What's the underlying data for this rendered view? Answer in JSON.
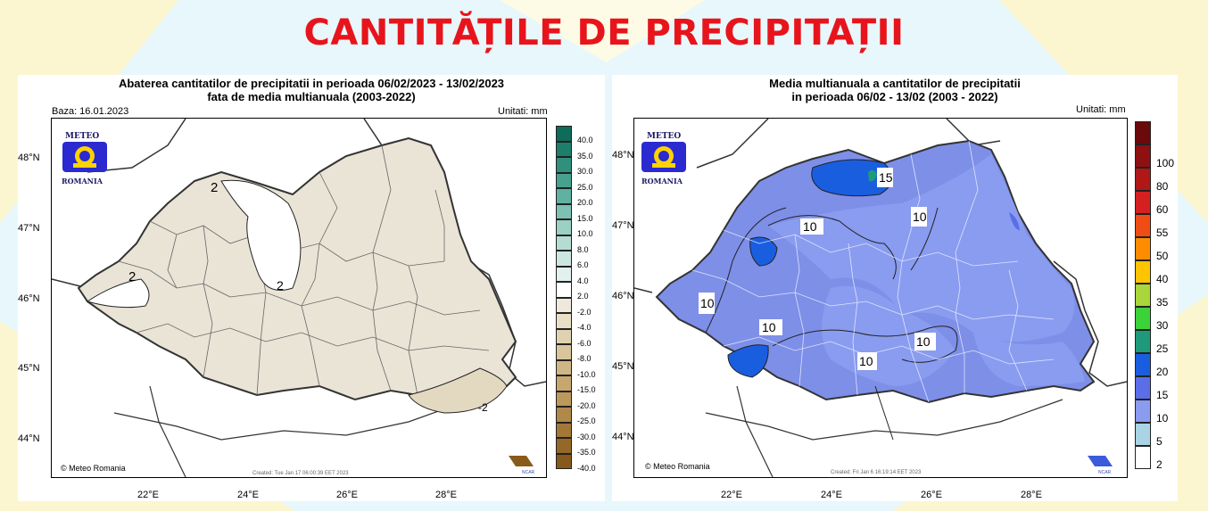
{
  "page": {
    "title": "CANTITĂȚILE DE PRECIPITAȚII"
  },
  "colors": {
    "title": "#e8141c",
    "romania_fill_left": "#e9e4d6",
    "romania_fill_right": "#7e8fe8"
  },
  "left_map": {
    "title_line1": "Abaterea cantitatilor de precipitatii in perioada 06/02/2023 - 13/02/2023",
    "title_line2": "fata de media multianuala (2003-2022)",
    "base_date": "Baza: 16.01.2023",
    "units": "Unitati: mm",
    "created": "Created: Tue Jan 17 06:00:39 EET 2023",
    "copyright": "© Meteo Romania",
    "logo_top": "METEO",
    "logo_bottom": "ROMANIA",
    "ncar": "NCAR",
    "latitudes": [
      "48°N",
      "47°N",
      "46°N",
      "45°N",
      "44°N"
    ],
    "longitudes": [
      "22°E",
      "24°E",
      "26°E",
      "28°E"
    ],
    "contour_labels": [
      "2",
      "2",
      "2",
      "-2"
    ],
    "legend": [
      {
        "label": "40.0",
        "color": "#0f6b5a"
      },
      {
        "label": "35.0",
        "color": "#1d7f6b"
      },
      {
        "label": "30.0",
        "color": "#2f917c"
      },
      {
        "label": "25.0",
        "color": "#46a18e"
      },
      {
        "label": "20.0",
        "color": "#5fb1a0"
      },
      {
        "label": "15.0",
        "color": "#7cc1b2"
      },
      {
        "label": "10.0",
        "color": "#9bd0c4"
      },
      {
        "label": "8.0",
        "color": "#b5dcd3"
      },
      {
        "label": "6.0",
        "color": "#cce6e0"
      },
      {
        "label": "4.0",
        "color": "#e3f1ee"
      },
      {
        "label": "2.0",
        "color": "#ffffff"
      },
      {
        "label": "-2.0",
        "color": "#eee9dc"
      },
      {
        "label": "-4.0",
        "color": "#e8dfc7"
      },
      {
        "label": "-6.0",
        "color": "#e0d2b1"
      },
      {
        "label": "-8.0",
        "color": "#d8c59b"
      },
      {
        "label": "-10.0",
        "color": "#cfb685"
      },
      {
        "label": "-15.0",
        "color": "#c6a770"
      },
      {
        "label": "-20.0",
        "color": "#bc985c"
      },
      {
        "label": "-25.0",
        "color": "#b08849"
      },
      {
        "label": "-30.0",
        "color": "#a37837"
      },
      {
        "label": "-35.0",
        "color": "#956827"
      },
      {
        "label": "-40.0",
        "color": "#87591a"
      }
    ]
  },
  "right_map": {
    "title_line1": "Media multianuala a cantitatilor de precipitatii",
    "title_line2": "in perioada 06/02 - 13/02 (2003 - 2022)",
    "units": "Unitati: mm",
    "created": "Created: Fri Jan 6 16:19:14 EET 2023",
    "copyright": "© Meteo Romania",
    "logo_top": "METEO",
    "logo_bottom": "ROMANIA",
    "ncar": "NCAR",
    "latitudes": [
      "48°N",
      "47°N",
      "46°N",
      "45°N",
      "44°N"
    ],
    "longitudes": [
      "22°E",
      "24°E",
      "26°E",
      "28°E"
    ],
    "contour_labels": [
      "10",
      "10",
      "10",
      "10",
      "10",
      "10",
      "15"
    ],
    "legend": [
      {
        "label": "",
        "color": "#6b0a0a"
      },
      {
        "label": "100",
        "color": "#8e1010"
      },
      {
        "label": "80",
        "color": "#b01818"
      },
      {
        "label": "60",
        "color": "#d42020"
      },
      {
        "label": "55",
        "color": "#f04d14"
      },
      {
        "label": "50",
        "color": "#ff8c00"
      },
      {
        "label": "40",
        "color": "#ffc400"
      },
      {
        "label": "35",
        "color": "#a9d63a"
      },
      {
        "label": "30",
        "color": "#3cd23a"
      },
      {
        "label": "25",
        "color": "#1e9a7a"
      },
      {
        "label": "20",
        "color": "#1a5ee0"
      },
      {
        "label": "15",
        "color": "#5a6ee8"
      },
      {
        "label": "10",
        "color": "#8a9cf0"
      },
      {
        "label": "5",
        "color": "#a8d4e4"
      },
      {
        "label": "2",
        "color": "#ffffff"
      }
    ]
  }
}
